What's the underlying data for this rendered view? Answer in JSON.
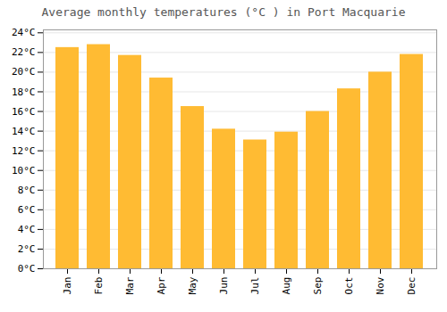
{
  "chart_data": {
    "type": "bar",
    "title": "Average monthly temperatures (°C ) in Port Macquarie",
    "categories": [
      "Jan",
      "Feb",
      "Mar",
      "Apr",
      "May",
      "Jun",
      "Jul",
      "Aug",
      "Sep",
      "Oct",
      "Nov",
      "Dec"
    ],
    "values": [
      22.5,
      22.8,
      21.7,
      19.4,
      16.5,
      14.2,
      13.1,
      13.9,
      16.0,
      18.3,
      20.0,
      21.8
    ],
    "color": "#FFBB33",
    "ylim": [
      0,
      24.3
    ],
    "yticks": [
      {
        "value": 0,
        "label": "0°C"
      },
      {
        "value": 2,
        "label": "2°C"
      },
      {
        "value": 4,
        "label": "4°C"
      },
      {
        "value": 6,
        "label": "6°C"
      },
      {
        "value": 8,
        "label": "8°C"
      },
      {
        "value": 10,
        "label": "10°C"
      },
      {
        "value": 12,
        "label": "12°C"
      },
      {
        "value": 14,
        "label": "14°C"
      },
      {
        "value": 16,
        "label": "16°C"
      },
      {
        "value": 18,
        "label": "18°C"
      },
      {
        "value": 20,
        "label": "20°C"
      },
      {
        "value": 22,
        "label": "22°C"
      },
      {
        "value": 24,
        "label": "24°C"
      }
    ],
    "grid": true
  }
}
